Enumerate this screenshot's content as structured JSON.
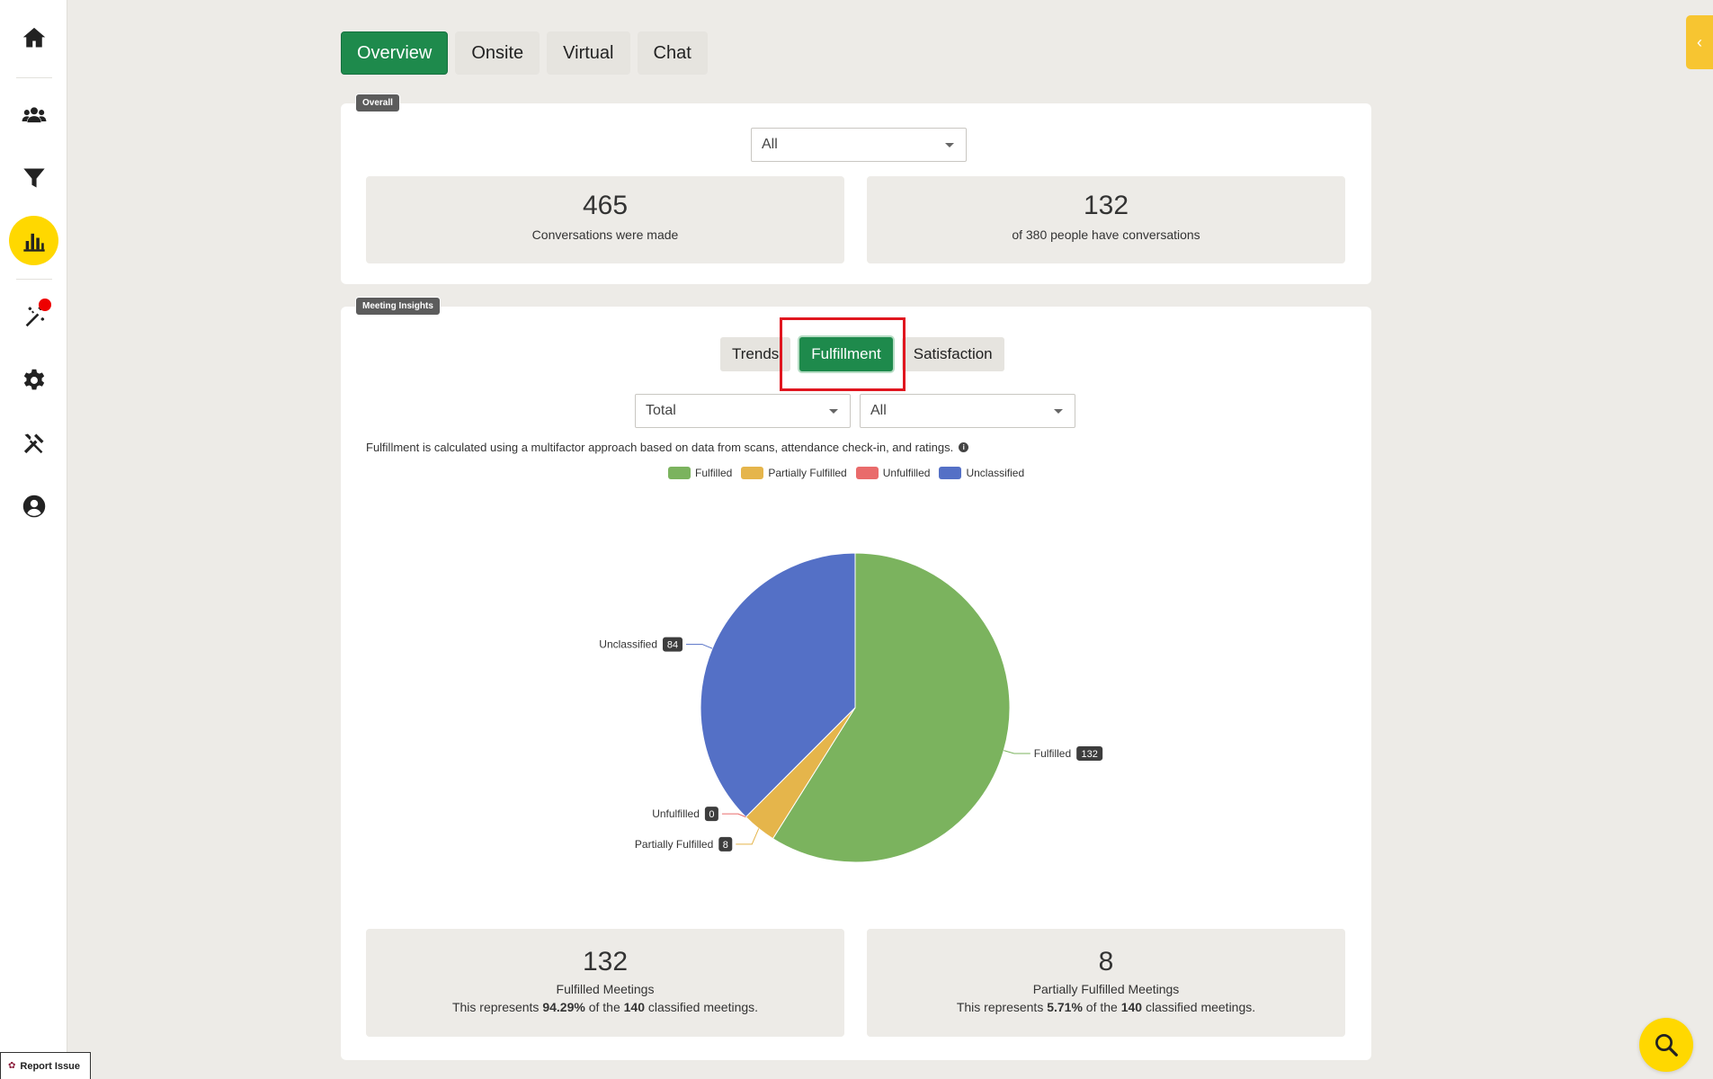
{
  "colors": {
    "accent_green": "#1e8a4c",
    "active_yellow": "#ffd800",
    "highlight_red": "#e0161f",
    "fulfilled": "#7bb35e",
    "partially_fulfilled": "#e5b54b",
    "unfulfilled": "#e96b6b",
    "unclassified": "#5470c6"
  },
  "sidebar": {
    "items": [
      {
        "icon": "home-icon"
      },
      {
        "icon": "users-icon"
      },
      {
        "icon": "filter-icon"
      },
      {
        "icon": "bar-chart-icon",
        "active": true
      },
      {
        "icon": "magic-wand-icon",
        "notification": true
      },
      {
        "icon": "gear-icon"
      },
      {
        "icon": "tools-icon"
      },
      {
        "icon": "user-circle-icon"
      }
    ]
  },
  "tabs": [
    "Overview",
    "Onsite",
    "Virtual",
    "Chat"
  ],
  "overall": {
    "badge": "Overall",
    "filter_value": "All",
    "stats": [
      {
        "value": "465",
        "label": "Conversations were made"
      },
      {
        "value": "132",
        "label": "of 380 people have conversations"
      }
    ]
  },
  "insights": {
    "badge": "Meeting Insights",
    "subtabs": [
      "Trends",
      "Fulfillment",
      "Satisfaction"
    ],
    "filter_left": "Total",
    "filter_right": "All",
    "description": "Fulfillment is calculated using a multifactor approach based on data from scans, attendance check-in, and ratings.",
    "info_icon": "i",
    "bottom_stats": [
      {
        "value": "132",
        "label": "Fulfilled Meetings",
        "sub_prefix": "This represents ",
        "pct": "94.29%",
        "sub_mid": " of the ",
        "total": "140",
        "sub_suffix": " classified meetings."
      },
      {
        "value": "8",
        "label": "Partially Fulfilled Meetings",
        "sub_prefix": "This represents ",
        "pct": "5.71%",
        "sub_mid": " of the ",
        "total": "140",
        "sub_suffix": " classified meetings."
      }
    ]
  },
  "chart_data": {
    "type": "pie",
    "categories": [
      "Fulfilled",
      "Partially Fulfilled",
      "Unfulfilled",
      "Unclassified"
    ],
    "values": [
      132,
      8,
      0,
      84
    ],
    "colors": [
      "#7bb35e",
      "#e5b54b",
      "#e96b6b",
      "#5470c6"
    ],
    "legend_position": "top"
  },
  "report_issue": "Report Issue"
}
